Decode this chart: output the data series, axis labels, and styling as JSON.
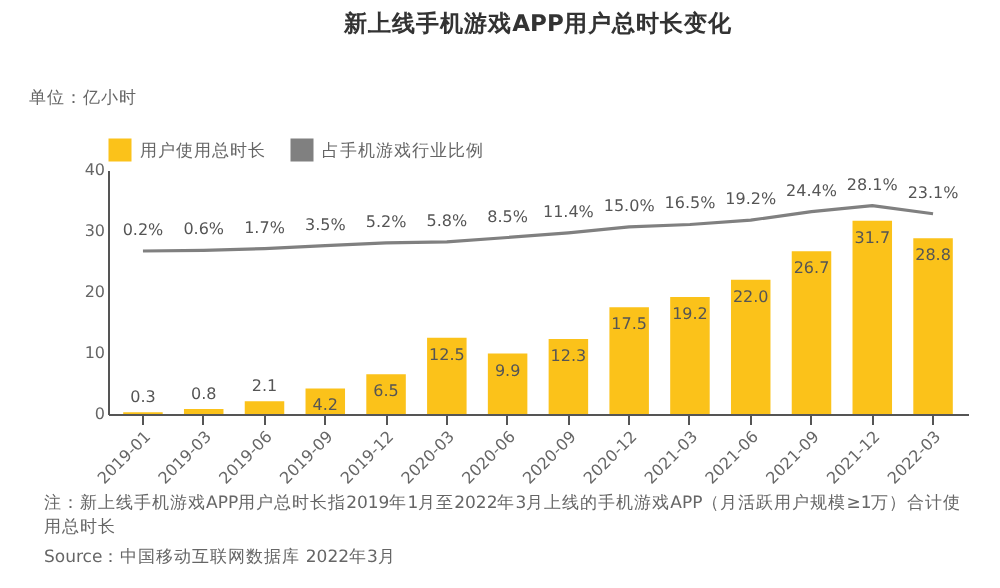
{
  "chart_data": {
    "type": "bar",
    "title": "新上线手机游戏APP用户总时长变化",
    "ylabel": "单位：亿小时",
    "categories": [
      "2019-01",
      "2019-03",
      "2019-06",
      "2019-09",
      "2019-12",
      "2020-03",
      "2020-06",
      "2020-09",
      "2020-12",
      "2021-03",
      "2021-06",
      "2021-09",
      "2021-12",
      "2022-03"
    ],
    "series": [
      {
        "name": "用户使用总时长",
        "color": "#fbc21a",
        "values": [
          0.3,
          0.8,
          2.1,
          4.2,
          6.5,
          12.5,
          9.9,
          12.3,
          17.5,
          19.2,
          22.0,
          26.7,
          31.7,
          28.8
        ],
        "value_labels": [
          "0.3",
          "0.8",
          "2.1",
          "4.2",
          "6.5",
          "12.5",
          "9.9",
          "12.3",
          "17.5",
          "19.2",
          "22.0",
          "26.7",
          "31.7",
          "28.8"
        ]
      },
      {
        "name": "占手机游戏行业比例",
        "type": "line",
        "axis": "y2",
        "color": "#808080",
        "values": [
          0.2,
          0.6,
          1.7,
          3.5,
          5.2,
          5.8,
          8.5,
          11.4,
          15.0,
          16.5,
          19.2,
          24.4,
          28.1,
          23.1
        ],
        "value_labels": [
          "0.2%",
          "0.6%",
          "1.7%",
          "3.5%",
          "5.2%",
          "5.8%",
          "8.5%",
          "11.4%",
          "15.0%",
          "16.5%",
          "19.2%",
          "24.4%",
          "28.1%",
          "23.1%"
        ]
      }
    ],
    "ylim": [
      0,
      40
    ],
    "yticks": [
      0,
      10,
      20,
      30,
      40
    ],
    "y2lim": [
      -100,
      50
    ],
    "legend": "top",
    "annotations": [
      "注：新上线手机游戏APP用户总时长指2019年1月至2022年3月上线的手机游戏APP（月活跃用户规模≥1万）合计使用总时长",
      "Source：中国移动互联网数据库 2022年3月"
    ]
  }
}
